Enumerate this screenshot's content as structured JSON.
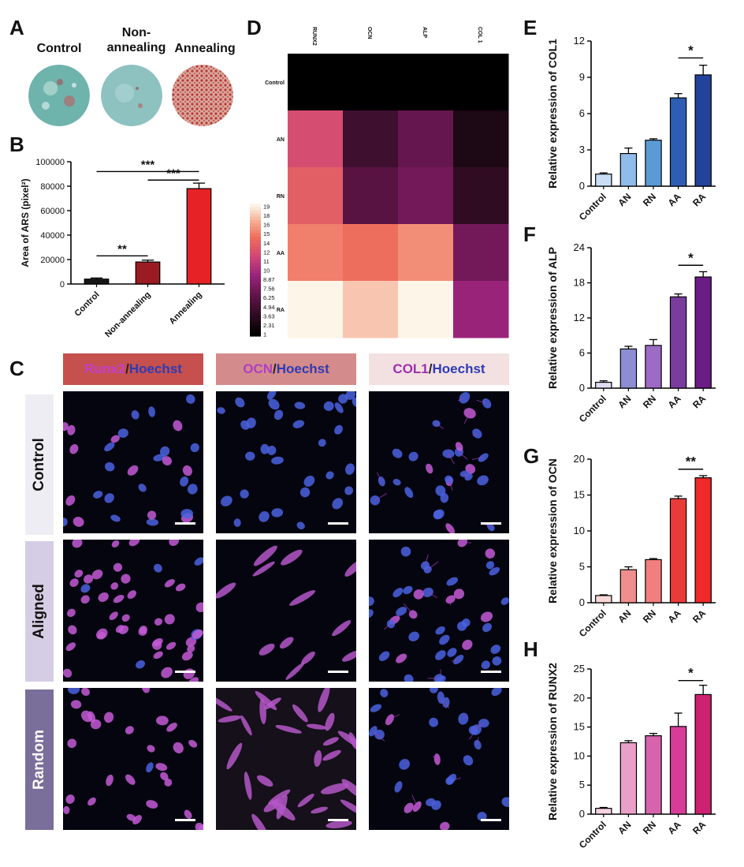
{
  "panel_letters": {
    "A": "A",
    "B": "B",
    "C": "C",
    "D": "D",
    "E": "E",
    "F": "F",
    "G": "G",
    "H": "H"
  },
  "panel_a": {
    "labels": [
      "Control",
      "Non-\nannealing",
      "Annealing"
    ],
    "colors": [
      "#6fb3ad",
      "#8ec2c0",
      "#d89a8c"
    ]
  },
  "chart_data": [
    {
      "id": "B",
      "type": "bar",
      "categories": [
        "Control",
        "Non-annealing",
        "Annealing"
      ],
      "values": [
        4000,
        18000,
        78000
      ],
      "errors": [
        900,
        1500,
        4500
      ],
      "colors": [
        "#161616",
        "#9b1b22",
        "#e52226"
      ],
      "ylabel": "Area of ARS (pixel²)",
      "ylim": [
        0,
        100000
      ],
      "yticks": [
        0,
        20000,
        40000,
        60000,
        80000,
        100000
      ],
      "significance": [
        {
          "from": 0,
          "to": 2,
          "label": "***",
          "y": 92000
        },
        {
          "from": 1,
          "to": 2,
          "label": "***",
          "y": 85000
        },
        {
          "from": 0,
          "to": 1,
          "label": "**",
          "y": 23000
        }
      ]
    },
    {
      "id": "D",
      "type": "heatmap",
      "columns": [
        "RUNX2",
        "OCN",
        "ALP",
        "COL 1"
      ],
      "rows": [
        "Control",
        "AN",
        "RN",
        "AA",
        "RA"
      ],
      "values": [
        [
          1,
          1,
          1,
          1
        ],
        [
          12.3,
          4.6,
          6.7,
          2.7
        ],
        [
          13.5,
          6.0,
          7.3,
          3.8
        ],
        [
          15.1,
          14.5,
          15.6,
          7.3
        ],
        [
          20.6,
          17.5,
          19.0,
          9.2
        ]
      ],
      "scale_ticks": [
        "19",
        "18",
        "16",
        "15",
        "14",
        "12",
        "11",
        "10",
        "8.87",
        "7.56",
        "6.25",
        "4.94",
        "3.63",
        "2.31",
        "1"
      ]
    },
    {
      "id": "E",
      "type": "bar",
      "categories": [
        "Control",
        "AN",
        "RN",
        "AA",
        "RA"
      ],
      "values": [
        1.0,
        2.7,
        3.8,
        7.3,
        9.2
      ],
      "errors": [
        0.1,
        0.45,
        0.12,
        0.35,
        0.8
      ],
      "colors": [
        "#c9def5",
        "#8fbce9",
        "#5b9bd5",
        "#2e5db3",
        "#23429a"
      ],
      "ylabel": "Relative expression of COL1",
      "ylim": [
        0,
        12
      ],
      "yticks": [
        0,
        3,
        6,
        9,
        12
      ],
      "significance": [
        {
          "from": 3,
          "to": 4,
          "label": "*",
          "y": 10.6
        }
      ]
    },
    {
      "id": "F",
      "type": "bar",
      "categories": [
        "Control",
        "AN",
        "RN",
        "AA",
        "RA"
      ],
      "values": [
        1.0,
        6.7,
        7.3,
        15.6,
        19.0
      ],
      "errors": [
        0.25,
        0.45,
        1.0,
        0.5,
        0.9
      ],
      "colors": [
        "#e2dcf2",
        "#8c8dd3",
        "#9c6bc4",
        "#7a3d9e",
        "#6a1d85"
      ],
      "ylabel": "Relative expression of ALP",
      "ylim": [
        0,
        24
      ],
      "yticks": [
        0,
        6,
        12,
        18,
        24
      ],
      "significance": [
        {
          "from": 3,
          "to": 4,
          "label": "*",
          "y": 21.0
        }
      ]
    },
    {
      "id": "G",
      "type": "bar",
      "categories": [
        "Control",
        "AN",
        "RN",
        "AA",
        "RA"
      ],
      "values": [
        1.0,
        4.6,
        6.0,
        14.5,
        17.4
      ],
      "errors": [
        0.1,
        0.4,
        0.15,
        0.35,
        0.3
      ],
      "colors": [
        "#fad7d7",
        "#f08e8e",
        "#f27e7e",
        "#ea3b3b",
        "#ee2a2a"
      ],
      "ylabel": "Relative expression of OCN",
      "ylim": [
        0,
        20
      ],
      "yticks": [
        0,
        5,
        10,
        15,
        20
      ],
      "significance": [
        {
          "from": 3,
          "to": 4,
          "label": "**",
          "y": 18.6
        }
      ]
    },
    {
      "id": "H",
      "type": "bar",
      "categories": [
        "Control",
        "AN",
        "RN",
        "AA",
        "RA"
      ],
      "values": [
        1.0,
        12.3,
        13.5,
        15.1,
        20.6
      ],
      "errors": [
        0.15,
        0.35,
        0.4,
        2.3,
        1.6
      ],
      "colors": [
        "#f7d2e2",
        "#e8a0c8",
        "#d863ad",
        "#d83c99",
        "#cc2270"
      ],
      "ylabel": "Relative expression of RUNX2",
      "ylim": [
        0,
        25
      ],
      "yticks": [
        0,
        5,
        10,
        15,
        20,
        25
      ],
      "significance": [
        {
          "from": 3,
          "to": 4,
          "label": "*",
          "y": 23.0
        }
      ]
    }
  ],
  "panel_c": {
    "columns": [
      {
        "stain": "Runx2",
        "sep": "/",
        "counter": "Hoechst",
        "bg": "#c5504e",
        "stain_color": "#c23fd0",
        "counter_color": "#2e3bb5"
      },
      {
        "stain": "OCN",
        "sep": "/",
        "counter": "Hoechst",
        "bg": "#d48b8b",
        "stain_color": "#b03ec4",
        "counter_color": "#2e3bb5"
      },
      {
        "stain": "COL1",
        "sep": "/",
        "counter": "Hoechst",
        "bg": "#f3e1e1",
        "stain_color": "#9e2fae",
        "counter_color": "#2e3bb5"
      }
    ],
    "rows": [
      {
        "label": "Control",
        "bg": "#eeedf4",
        "color": "#111111"
      },
      {
        "label": "Aligned",
        "bg": "#d4cde3",
        "color": "#111111"
      },
      {
        "label": "Random",
        "bg": "#7a6e9a",
        "color": "#ffffff"
      }
    ]
  }
}
